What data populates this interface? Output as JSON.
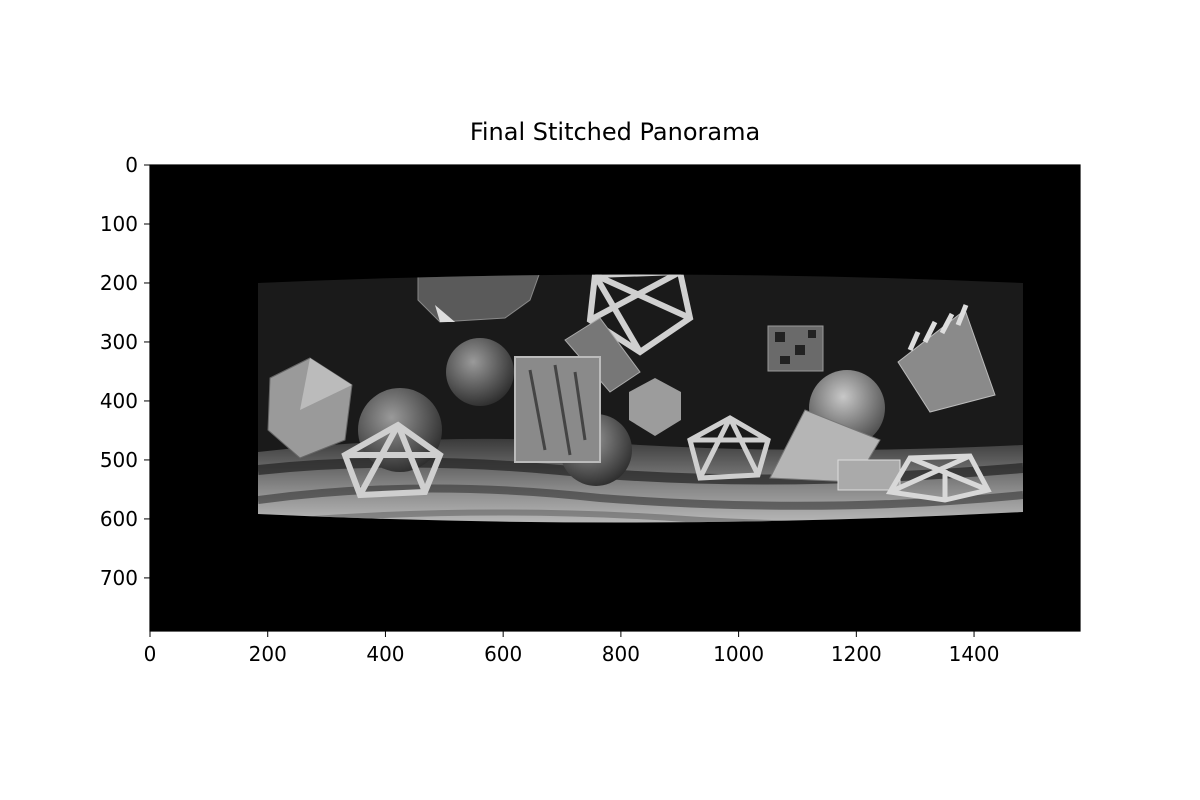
{
  "figure": {
    "title": "Final Stitched Panorama"
  },
  "image": {
    "description_name": "stitched-panorama",
    "colors": {
      "background": "#000000",
      "page": "#ffffff"
    }
  },
  "axes": {
    "x_ticks": [
      "0",
      "200",
      "400",
      "600",
      "800",
      "1000",
      "1200",
      "1400"
    ],
    "y_ticks": [
      "0",
      "100",
      "200",
      "300",
      "400",
      "500",
      "600",
      "700"
    ],
    "xlim": [
      0,
      1580
    ],
    "ylim": [
      790,
      0
    ]
  }
}
